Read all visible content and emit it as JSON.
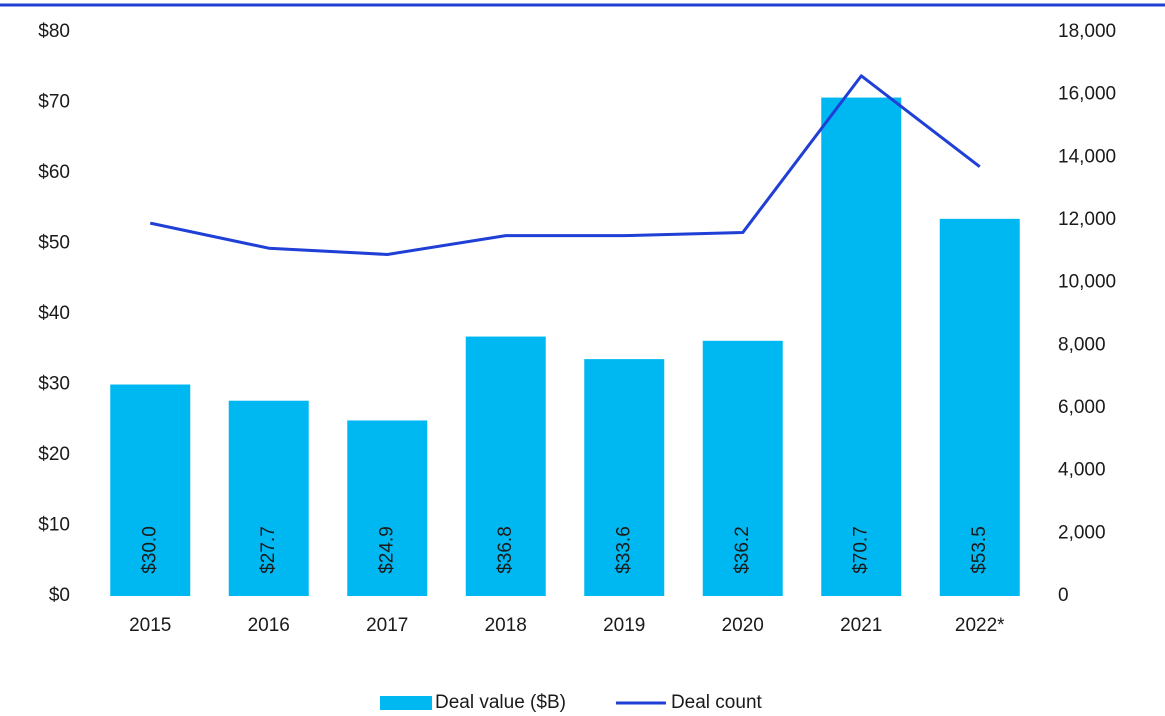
{
  "chart_data": {
    "type": "bar_line",
    "categories": [
      "2015",
      "2016",
      "2017",
      "2018",
      "2019",
      "2020",
      "2021",
      "2022*"
    ],
    "series": [
      {
        "name": "Deal value ($B)",
        "type": "bar",
        "color": "#00b8f1",
        "axis": "y",
        "values": [
          30.0,
          27.7,
          24.9,
          36.8,
          33.6,
          36.2,
          70.7,
          53.5
        ],
        "value_labels": [
          "$30.0",
          "$27.7",
          "$24.9",
          "$36.8",
          "$33.6",
          "$36.2",
          "$70.7",
          "$53.5"
        ]
      },
      {
        "name": "Deal count",
        "type": "line",
        "color": "#1f3fd6",
        "axis": "y2",
        "values": [
          11900,
          11100,
          10900,
          11500,
          11500,
          11600,
          16600,
          13700
        ]
      }
    ],
    "ylim": [
      0,
      80
    ],
    "yticks": [
      {
        "value": 0,
        "label": "$0"
      },
      {
        "value": 10,
        "label": "$10"
      },
      {
        "value": 20,
        "label": "$20"
      },
      {
        "value": 30,
        "label": "$30"
      },
      {
        "value": 40,
        "label": "$40"
      },
      {
        "value": 50,
        "label": "$50"
      },
      {
        "value": 60,
        "label": "$60"
      },
      {
        "value": 70,
        "label": "$70"
      },
      {
        "value": 80,
        "label": "$80"
      }
    ],
    "y2lim": [
      0,
      18000
    ],
    "y2ticks": [
      0,
      {
        "value": 2000,
        "label": "2,000"
      },
      {
        "value": 4000,
        "label": "4,000"
      },
      {
        "value": 6000,
        "label": "6,000"
      },
      {
        "value": 8000,
        "label": "8,000"
      },
      {
        "value": 10000,
        "label": "10,000"
      },
      {
        "value": 12000,
        "label": "12,000"
      },
      {
        "value": 14000,
        "label": "14,000"
      },
      {
        "value": 16000,
        "label": "16,000"
      },
      {
        "value": 18000,
        "label": "18,000"
      }
    ],
    "legend": "bottom"
  }
}
